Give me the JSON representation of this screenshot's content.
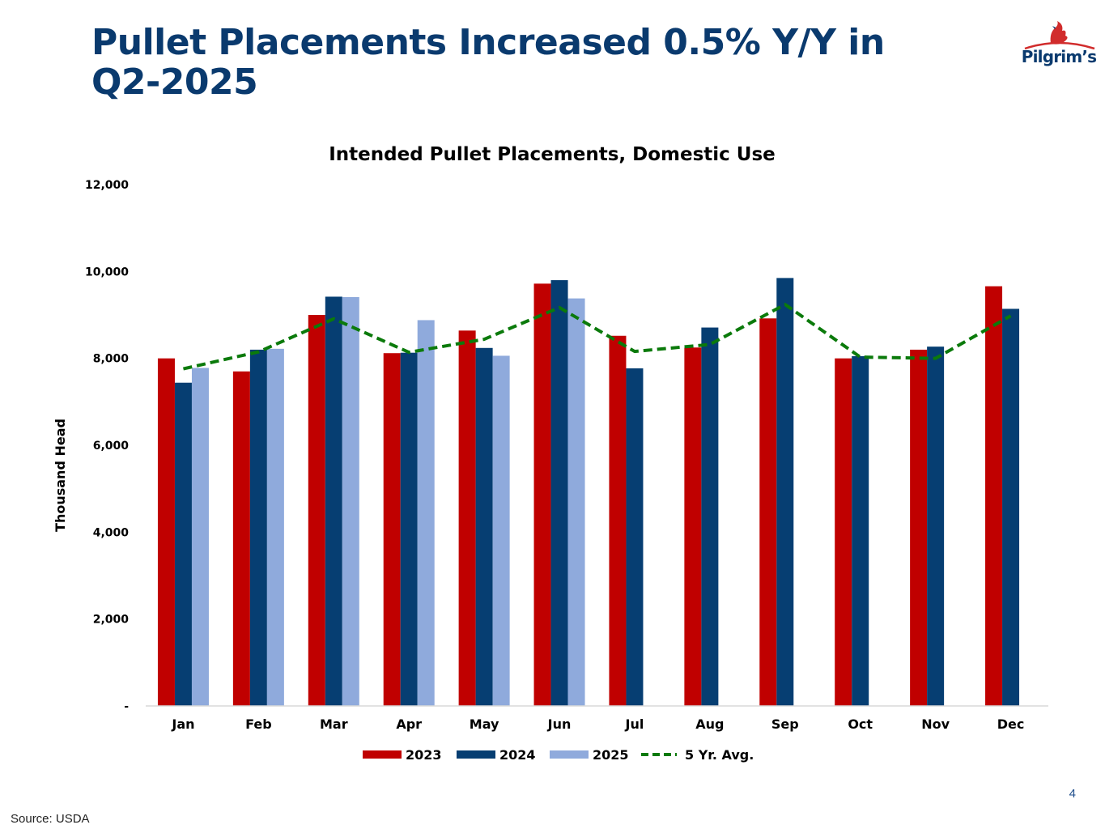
{
  "slide": {
    "title": "Pullet Placements Increased 0.5% Y/Y in Q2-2025",
    "logo_text": "Pilgrim’s",
    "page_number": "4",
    "source": "Source: USDA"
  },
  "colors": {
    "title": "#0a3a6e",
    "series_2023": "#c00000",
    "series_2024": "#063e72",
    "series_2025": "#8faadc",
    "avg_line": "#0b7a0b",
    "logo_red": "#d12c2c"
  },
  "chart_data": {
    "type": "bar",
    "title": "Intended Pullet Placements, Domestic Use",
    "ylabel": "Thousand Head",
    "xlabel": "",
    "ylim": [
      0,
      12000
    ],
    "yticks": [
      {
        "value": 0,
        "label": "-"
      },
      {
        "value": 2000,
        "label": "2,000"
      },
      {
        "value": 4000,
        "label": "4,000"
      },
      {
        "value": 6000,
        "label": "6,000"
      },
      {
        "value": 8000,
        "label": "8,000"
      },
      {
        "value": 10000,
        "label": "10,000"
      },
      {
        "value": 12000,
        "label": "12,000"
      }
    ],
    "grid": false,
    "legend_position": "bottom",
    "categories": [
      "Jan",
      "Feb",
      "Mar",
      "Apr",
      "May",
      "Jun",
      "Jul",
      "Aug",
      "Sep",
      "Oct",
      "Nov",
      "Dec"
    ],
    "series": [
      {
        "name": "2023",
        "type": "bar",
        "values": [
          8000,
          7700,
          9000,
          8120,
          8640,
          9720,
          8520,
          8250,
          8920,
          8000,
          8200,
          9660
        ]
      },
      {
        "name": "2024",
        "type": "bar",
        "values": [
          7440,
          8200,
          9420,
          8130,
          8240,
          9800,
          7770,
          8710,
          9850,
          8050,
          8270,
          9140
        ]
      },
      {
        "name": "2025",
        "type": "bar",
        "values": [
          7780,
          8220,
          9410,
          8880,
          8060,
          9380,
          null,
          null,
          null,
          null,
          null,
          null
        ]
      },
      {
        "name": "5 Yr. Avg.",
        "type": "line",
        "style": "dashed",
        "values": [
          7760,
          8150,
          8910,
          8140,
          8440,
          9170,
          8160,
          8320,
          9240,
          8030,
          8000,
          8980
        ]
      }
    ]
  }
}
